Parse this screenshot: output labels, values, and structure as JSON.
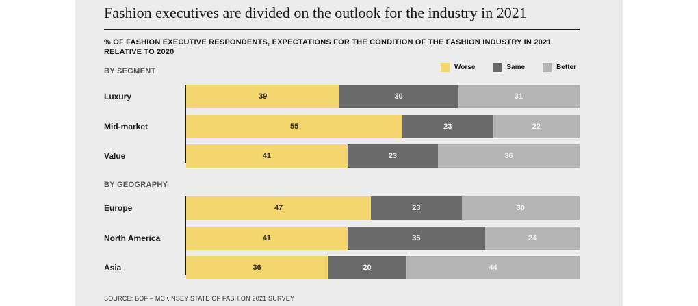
{
  "title": "Fashion executives are divided on the outlook for the industry in 2021",
  "subtitle": "% OF FASHION EXECUTIVE RESPONDENTS, EXPECTATIONS FOR THE CONDITION OF THE FASHION INDUSTRY IN 2021 RELATIVE TO 2020",
  "source": "SOURCE: BOF – MCKINSEY STATE OF FASHION 2021 SURVEY",
  "colors": {
    "worse": "#f3d66e",
    "same": "#6a6a6a",
    "better": "#b5b5b5",
    "background": "#ececec"
  },
  "chart_data": {
    "type": "bar",
    "orientation": "horizontal",
    "stacked": true,
    "title": "Fashion executives are divided on the outlook for the industry in 2021",
    "subtitle": "% OF FASHION EXECUTIVE RESPONDENTS, EXPECTATIONS FOR THE CONDITION OF THE FASHION INDUSTRY IN 2021 RELATIVE TO 2020",
    "xlim": [
      0,
      100
    ],
    "grid": false,
    "legend_position": "top-right",
    "series": [
      {
        "name": "Worse",
        "color": "#f3d66e"
      },
      {
        "name": "Same",
        "color": "#6a6a6a"
      },
      {
        "name": "Better",
        "color": "#b5b5b5"
      }
    ],
    "groups": [
      {
        "label": "BY SEGMENT",
        "rows": [
          {
            "category": "Luxury",
            "values": [
              39,
              30,
              31
            ]
          },
          {
            "category": "Mid-market",
            "values": [
              55,
              23,
              22
            ]
          },
          {
            "category": "Value",
            "values": [
              41,
              23,
              36
            ]
          }
        ]
      },
      {
        "label": "BY GEOGRAPHY",
        "rows": [
          {
            "category": "Europe",
            "values": [
              47,
              23,
              30
            ]
          },
          {
            "category": "North America",
            "values": [
              41,
              35,
              24
            ]
          },
          {
            "category": "Asia",
            "values": [
              36,
              20,
              44
            ]
          }
        ]
      }
    ]
  }
}
